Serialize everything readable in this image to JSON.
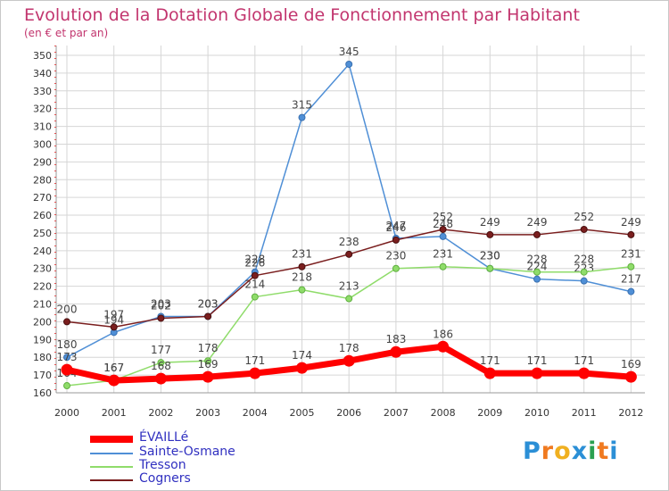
{
  "chart_data": {
    "type": "line",
    "title": "Evolution de la Dotation Globale de Fonctionnement par Habitant",
    "subtitle": "(en € et par an)",
    "x": [
      "2000",
      "2001",
      "2002",
      "2003",
      "2004",
      "2005",
      "2006",
      "2007",
      "2008",
      "2009",
      "2010",
      "2011",
      "2012"
    ],
    "ylim": [
      160,
      350
    ],
    "yticks": [
      160,
      170,
      180,
      190,
      200,
      210,
      220,
      230,
      240,
      250,
      260,
      270,
      280,
      290,
      300,
      310,
      320,
      330,
      340,
      350
    ],
    "grid": true,
    "legend": "bottom-left",
    "series": [
      {
        "name": "ÉVAILLé",
        "color": "#ff0000",
        "values": [
          173,
          167,
          168,
          169,
          171,
          174,
          178,
          183,
          186,
          171,
          171,
          171,
          169
        ],
        "labels": [
          "173",
          "167",
          "168",
          "169",
          "171",
          "174",
          "178",
          "183",
          "186",
          "171",
          "171",
          "171",
          "169"
        ]
      },
      {
        "name": "Sainte-Osmane",
        "color": "#4f8fd6",
        "values": [
          180,
          194,
          203,
          203,
          228,
          315,
          345,
          247,
          248,
          230,
          224,
          223,
          217
        ],
        "labels": [
          "180",
          "194",
          "203",
          "203",
          "228",
          "315",
          "345",
          "247",
          "248",
          "230",
          "224",
          "223",
          "217"
        ]
      },
      {
        "name": "Tresson",
        "color": "#8fdc6a",
        "values": [
          164,
          167,
          177,
          178,
          214,
          218,
          213,
          230,
          231,
          230,
          228,
          228,
          231
        ],
        "labels": [
          "164",
          "167",
          "177",
          "178",
          "214",
          "218",
          "213",
          "230",
          "231",
          "230",
          "228",
          "228",
          "231"
        ]
      },
      {
        "name": "Cogners",
        "color": "#7a1e1e",
        "values": [
          200,
          197,
          202,
          203,
          226,
          231,
          238,
          246,
          252,
          249,
          249,
          252,
          249
        ],
        "labels": [
          "200",
          "197",
          "202",
          "203",
          "226",
          "231",
          "238",
          "246",
          "252",
          "249",
          "249",
          "252",
          "249"
        ]
      }
    ]
  },
  "logo": {
    "letters": [
      "P",
      "r",
      "o",
      "x",
      "i",
      "t",
      "i"
    ],
    "colors": [
      "#2b8fd6",
      "#f07a20",
      "#f0b020",
      "#2b8fd6",
      "#2ba050",
      "#f07a20",
      "#2b8fd6"
    ]
  }
}
